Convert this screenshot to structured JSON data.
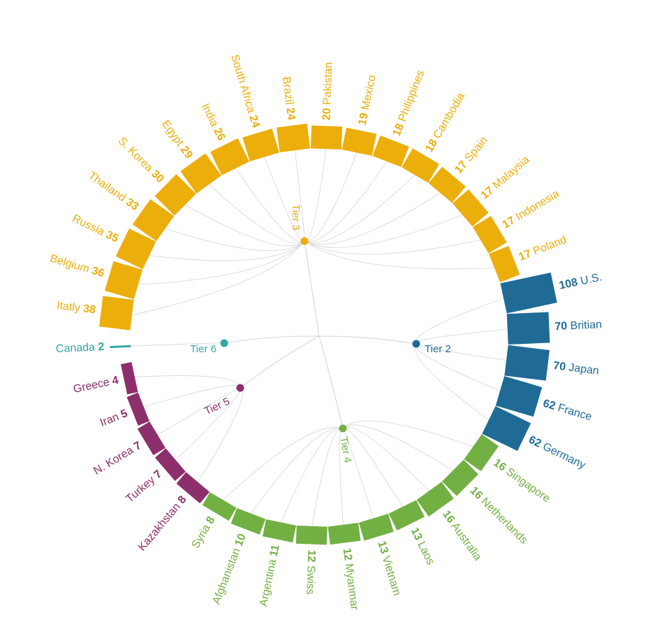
{
  "chart_data": {
    "type": "radial-bar",
    "title": "",
    "tiers": [
      {
        "name": "Tier 2",
        "color": "#1f6b96"
      },
      {
        "name": "Tier 3",
        "color": "#ecae0b"
      },
      {
        "name": "Tier 4",
        "color": "#72b043"
      },
      {
        "name": "Tier 5",
        "color": "#8c2f6c"
      },
      {
        "name": "Tier 6",
        "color": "#34a7a3"
      }
    ],
    "countries": [
      {
        "name": "U.S.",
        "value": 108,
        "tier": "Tier 2"
      },
      {
        "name": "Britian",
        "value": 70,
        "tier": "Tier 2"
      },
      {
        "name": "Japan",
        "value": 70,
        "tier": "Tier 2"
      },
      {
        "name": "France",
        "value": 62,
        "tier": "Tier 2"
      },
      {
        "name": "Germany",
        "value": 62,
        "tier": "Tier 2"
      },
      {
        "name": "Singapore",
        "value": 16,
        "tier": "Tier 4"
      },
      {
        "name": "Netherlands",
        "value": 16,
        "tier": "Tier 4"
      },
      {
        "name": "Australia",
        "value": 16,
        "tier": "Tier 4"
      },
      {
        "name": "Laos",
        "value": 13,
        "tier": "Tier 4"
      },
      {
        "name": "Vietnam",
        "value": 13,
        "tier": "Tier 4"
      },
      {
        "name": "Myanmar",
        "value": 12,
        "tier": "Tier 4"
      },
      {
        "name": "Swiss",
        "value": 12,
        "tier": "Tier 4"
      },
      {
        "name": "Argentina",
        "value": 11,
        "tier": "Tier 4"
      },
      {
        "name": "Afghanistan",
        "value": 10,
        "tier": "Tier 4"
      },
      {
        "name": "Syria",
        "value": 8,
        "tier": "Tier 4"
      },
      {
        "name": "Kazakhstan",
        "value": 8,
        "tier": "Tier 5"
      },
      {
        "name": "Turkey",
        "value": 7,
        "tier": "Tier 5"
      },
      {
        "name": "N. Korea",
        "value": 7,
        "tier": "Tier 5"
      },
      {
        "name": "Iran",
        "value": 5,
        "tier": "Tier 5"
      },
      {
        "name": "Greece",
        "value": 4,
        "tier": "Tier 5"
      },
      {
        "name": "Canada",
        "value": 2,
        "tier": "Tier 6"
      },
      {
        "name": "Itatly",
        "value": 38,
        "tier": "Tier 3"
      },
      {
        "name": "Belgium",
        "value": 36,
        "tier": "Tier 3"
      },
      {
        "name": "Russia",
        "value": 35,
        "tier": "Tier 3"
      },
      {
        "name": "Thailand",
        "value": 33,
        "tier": "Tier 3"
      },
      {
        "name": "S. Korea",
        "value": 30,
        "tier": "Tier 3"
      },
      {
        "name": "Egypt",
        "value": 29,
        "tier": "Tier 3"
      },
      {
        "name": "India",
        "value": 26,
        "tier": "Tier 3"
      },
      {
        "name": "South Africa",
        "value": 24,
        "tier": "Tier 3"
      },
      {
        "name": "Brazil",
        "value": 24,
        "tier": "Tier 3"
      },
      {
        "name": "Pakistan",
        "value": 20,
        "tier": "Tier 3"
      },
      {
        "name": "Mexico",
        "value": 19,
        "tier": "Tier 3"
      },
      {
        "name": "Philippines",
        "value": 18,
        "tier": "Tier 3"
      },
      {
        "name": "Cambodia",
        "value": 18,
        "tier": "Tier 3"
      },
      {
        "name": "Spain",
        "value": 17,
        "tier": "Tier 3"
      },
      {
        "name": "Malaysia",
        "value": 17,
        "tier": "Tier 3"
      },
      {
        "name": "Indonesia",
        "value": 17,
        "tier": "Tier 3"
      },
      {
        "name": "Poland",
        "value": 17,
        "tier": "Tier 3"
      }
    ]
  }
}
